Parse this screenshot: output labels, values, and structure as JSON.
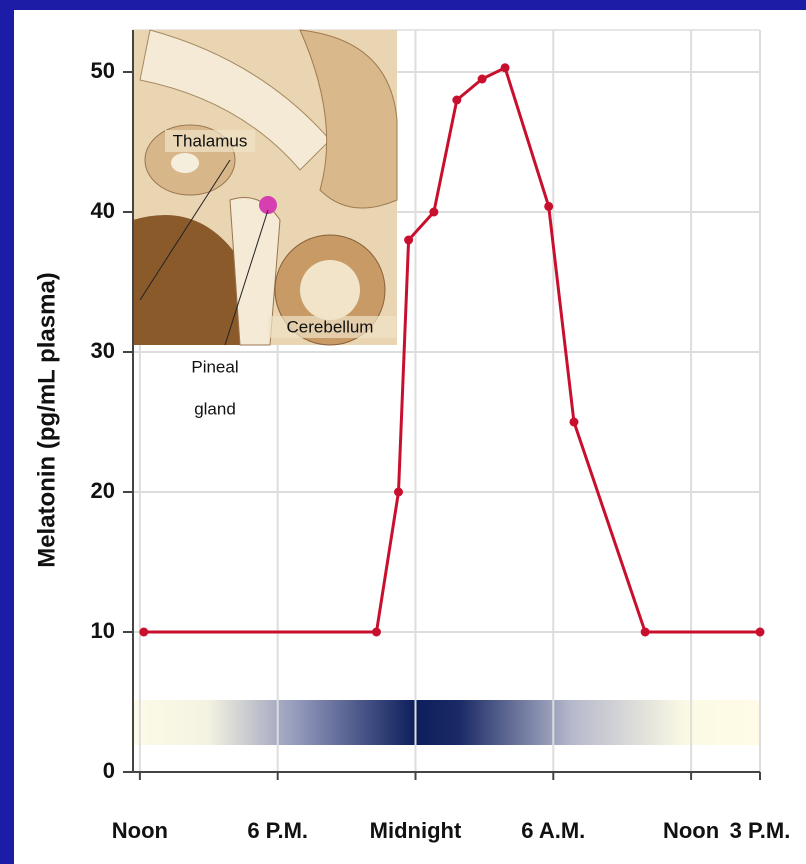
{
  "chart_data": {
    "type": "line",
    "y_label": "Melatonin (pg/mL plasma)",
    "x": [
      0.17,
      10.3,
      11.26,
      11.7,
      12.8,
      13.8,
      14.9,
      15.9,
      17.8,
      18.9,
      22,
      27
    ],
    "series": [
      {
        "color": "#c8102e",
        "values": [
          10,
          10,
          20,
          38,
          40,
          48,
          49.5,
          50.3,
          40.4,
          25,
          10,
          10
        ]
      }
    ],
    "xlim": [
      -0.3,
      27
    ],
    "xticks": [
      {
        "value": 0,
        "label": "Noon"
      },
      {
        "value": 6,
        "label": "6 P.M."
      },
      {
        "value": 12,
        "label": "Midnight"
      },
      {
        "value": 18,
        "label": "6 A.M."
      },
      {
        "value": 24,
        "label": "Noon"
      },
      {
        "value": 27,
        "label": "3 P.M."
      }
    ],
    "ylim": [
      0,
      53
    ],
    "yticks": [
      0,
      10,
      20,
      30,
      40,
      50
    ],
    "grid": true,
    "annotations": [
      "Thalamus",
      "Cerebellum",
      "Pineal",
      "gland"
    ]
  }
}
